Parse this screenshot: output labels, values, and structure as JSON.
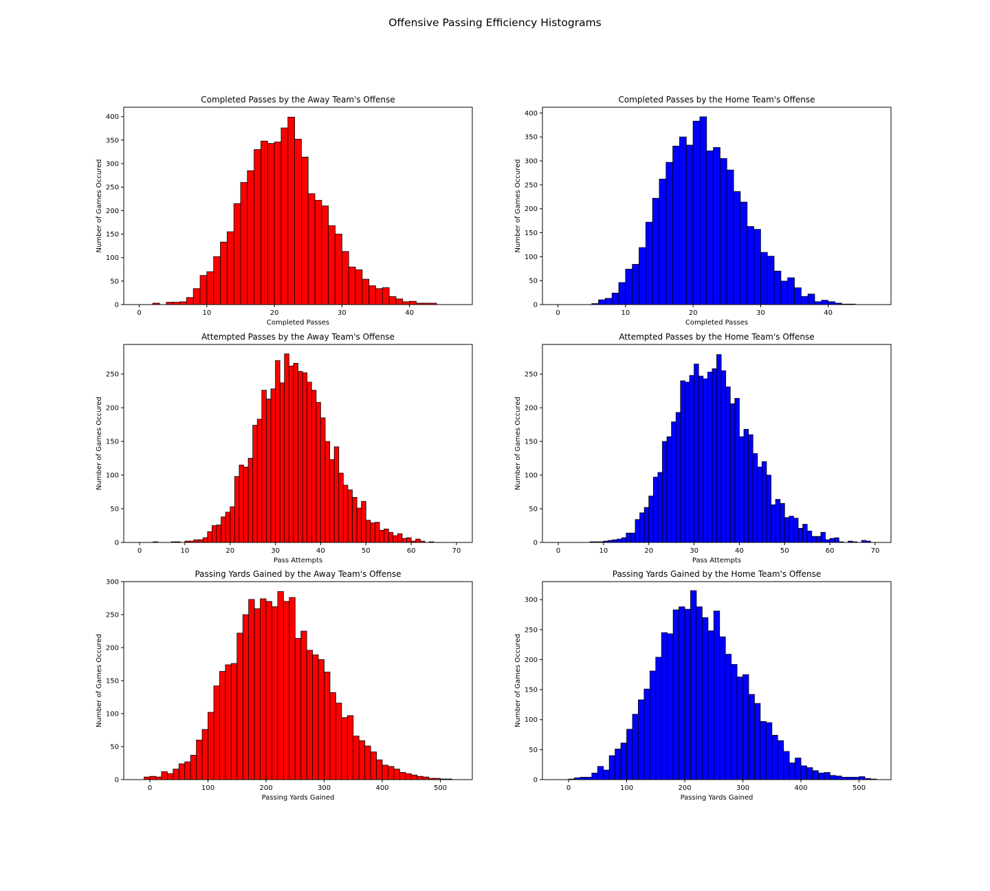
{
  "figure": {
    "suptitle": "Offensive Passing Efficiency Histograms",
    "edgecolor": "#000000"
  },
  "chart_data": [
    {
      "type": "bar",
      "title": "Completed Passes by the Away Team's Offense",
      "xlabel": "Completed Passes",
      "ylabel": "Number of Games Occured",
      "color": "#ff0000",
      "xlim": [
        -2.3,
        49.3
      ],
      "ylim": [
        0,
        420
      ],
      "xticks": [
        0,
        10,
        20,
        30,
        40
      ],
      "yticks": [
        0,
        50,
        100,
        150,
        200,
        250,
        300,
        350,
        400
      ],
      "bins": {
        "start": 2,
        "width": 1
      },
      "values": [
        3,
        0,
        5,
        5,
        6,
        15,
        34,
        62,
        70,
        102,
        133,
        155,
        215,
        260,
        285,
        330,
        348,
        343,
        346,
        376,
        399,
        352,
        314,
        236,
        222,
        210,
        168,
        150,
        113,
        80,
        74,
        54,
        40,
        34,
        36,
        17,
        12,
        6,
        7,
        3,
        3,
        3
      ]
    },
    {
      "type": "bar",
      "title": "Completed Passes by the Home Team's Offense",
      "xlabel": "Completed Passes",
      "ylabel": "Number of Games Occured",
      "color": "#0000ff",
      "xlim": [
        -2.3,
        49.3
      ],
      "ylim": [
        0,
        412
      ],
      "xticks": [
        0,
        10,
        20,
        30,
        40
      ],
      "yticks": [
        0,
        50,
        100,
        150,
        200,
        250,
        300,
        350,
        400
      ],
      "bins": {
        "start": 5,
        "width": 1
      },
      "values": [
        2,
        10,
        13,
        24,
        46,
        74,
        84,
        119,
        172,
        222,
        262,
        297,
        331,
        350,
        333,
        383,
        392,
        321,
        328,
        305,
        281,
        236,
        214,
        163,
        157,
        109,
        101,
        70,
        49,
        56,
        35,
        17,
        22,
        6,
        9,
        6,
        3,
        1,
        1
      ]
    },
    {
      "type": "bar",
      "title": "Attempted Passes by the Away Team's Offense",
      "xlabel": "Pass Attempts",
      "ylabel": "Number of Games Occured",
      "color": "#ff0000",
      "xlim": [
        -3.5,
        73.5
      ],
      "ylim": [
        0,
        294
      ],
      "xticks": [
        0,
        10,
        20,
        30,
        40,
        50,
        60,
        70
      ],
      "yticks": [
        0,
        50,
        100,
        150,
        200,
        250
      ],
      "bins": {
        "start": 3,
        "width": 1
      },
      "values": [
        1,
        0,
        0,
        0,
        1,
        1,
        0,
        2,
        2,
        4,
        4,
        7,
        16,
        25,
        26,
        38,
        45,
        53,
        98,
        115,
        112,
        125,
        174,
        183,
        226,
        213,
        228,
        270,
        237,
        280,
        262,
        266,
        254,
        252,
        238,
        226,
        208,
        185,
        150,
        123,
        142,
        103,
        85,
        78,
        67,
        51,
        61,
        33,
        29,
        30,
        18,
        20,
        15,
        10,
        13,
        6,
        7,
        2,
        5,
        2,
        0,
        1
      ]
    },
    {
      "type": "bar",
      "title": "Attempted Passes by the Home Team's Offense",
      "xlabel": "Pass Attempts",
      "ylabel": "Number of Games Occured",
      "color": "#0000ff",
      "xlim": [
        -3.5,
        73.5
      ],
      "ylim": [
        0,
        294
      ],
      "xticks": [
        0,
        10,
        20,
        30,
        40,
        50,
        60,
        70
      ],
      "yticks": [
        0,
        50,
        100,
        150,
        200,
        250
      ],
      "bins": {
        "start": 7,
        "width": 1
      },
      "values": [
        1,
        1,
        1,
        2,
        3,
        4,
        5,
        7,
        14,
        14,
        34,
        44,
        52,
        69,
        97,
        104,
        150,
        157,
        179,
        193,
        240,
        238,
        248,
        265,
        247,
        243,
        253,
        258,
        279,
        255,
        231,
        206,
        214,
        157,
        168,
        160,
        132,
        112,
        120,
        100,
        56,
        64,
        58,
        37,
        39,
        36,
        21,
        27,
        17,
        9,
        9,
        15,
        4,
        6,
        7,
        1,
        0,
        2,
        1,
        0,
        3,
        2
      ]
    },
    {
      "type": "bar",
      "title": "Passing Yards Gained by the Away Team's Offense",
      "xlabel": "Passing Yards Gained",
      "ylabel": "Number of Games Occured",
      "color": "#ff0000",
      "xlim": [
        -45,
        555
      ],
      "ylim": [
        0,
        300
      ],
      "xticks": [
        0,
        100,
        200,
        300,
        400,
        500
      ],
      "yticks": [
        0,
        50,
        100,
        150,
        200,
        250,
        300
      ],
      "bins": {
        "start": -10,
        "width": 10
      },
      "values": [
        4,
        5,
        4,
        12,
        9,
        16,
        24,
        27,
        37,
        60,
        76,
        102,
        142,
        164,
        174,
        176,
        222,
        250,
        273,
        259,
        274,
        270,
        262,
        285,
        270,
        276,
        214,
        225,
        196,
        189,
        182,
        163,
        132,
        116,
        94,
        97,
        66,
        59,
        51,
        42,
        30,
        22,
        20,
        16,
        11,
        9,
        7,
        5,
        4,
        2,
        2,
        1,
        1
      ]
    },
    {
      "type": "bar",
      "title": "Passing Yards Gained by the Home Team's Offense",
      "xlabel": "Passing Yards Gained",
      "ylabel": "Number of Games Occured",
      "color": "#0000ff",
      "xlim": [
        -45,
        555
      ],
      "ylim": [
        0,
        330
      ],
      "xticks": [
        0,
        100,
        200,
        300,
        400,
        500
      ],
      "yticks": [
        0,
        50,
        100,
        150,
        200,
        250,
        300
      ],
      "bins": {
        "start": 0,
        "width": 10
      },
      "values": [
        1,
        3,
        4,
        4,
        11,
        22,
        16,
        40,
        51,
        61,
        84,
        109,
        133,
        151,
        181,
        204,
        245,
        243,
        283,
        288,
        284,
        315,
        288,
        270,
        248,
        281,
        238,
        209,
        192,
        171,
        175,
        142,
        127,
        97,
        95,
        74,
        65,
        47,
        28,
        36,
        23,
        20,
        15,
        11,
        12,
        7,
        6,
        4,
        4,
        4,
        5,
        2,
        1
      ]
    }
  ]
}
